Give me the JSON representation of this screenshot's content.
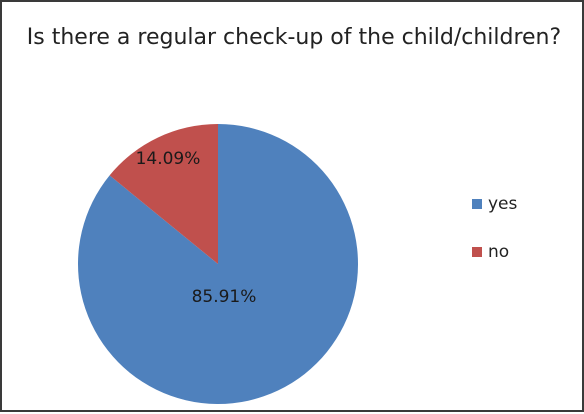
{
  "chart_data": {
    "type": "pie",
    "title": "Is there a regular check-up of the child/children?",
    "categories": [
      "yes",
      "no"
    ],
    "values": [
      85.91,
      14.09
    ],
    "value_labels": [
      "85.91%",
      "14.09%"
    ],
    "colors": [
      "#4f81bd",
      "#c0504d"
    ],
    "legend_position": "right"
  }
}
